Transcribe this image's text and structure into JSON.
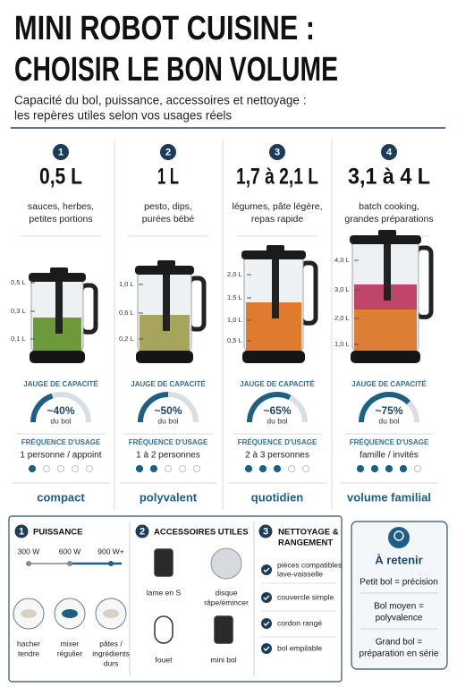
{
  "header": {
    "title_lines": [
      "MINI ROBOT CUISINE :",
      "CHOISIR LE BON VOLUME"
    ],
    "subtitle_lines": [
      "Capacité du bol, puissance, accessoires et nettoyage :",
      "les repères utiles selon vos usages réels"
    ]
  },
  "columns": [
    {
      "number": 1,
      "volume": "0,5 L",
      "description": [
        "sauces, herbes,",
        "petites portions"
      ],
      "scale": [
        "0,5 L",
        "0,3 L",
        "0,1 L"
      ],
      "gauge_title": "JAUGE DE CAPACITÉ",
      "gauge": {
        "value": 40,
        "label": "~40%"
      },
      "gauge_unit": "du bol",
      "usage_title": "FRÉQUENCE D'USAGE",
      "usage": "1 personne / appoint",
      "usage_level": 1,
      "usage_max": 5,
      "tag": "compact"
    },
    {
      "number": 2,
      "volume": "1 L",
      "description": [
        "pesto, dips,",
        "purées bébé"
      ],
      "scale": [
        "1,0 L",
        "0,6 L",
        "0,2 L"
      ],
      "gauge_title": "JAUGE DE CAPACITÉ",
      "gauge": {
        "value": 50,
        "label": "~50%"
      },
      "gauge_unit": "du bol",
      "usage_title": "FRÉQUENCE D'USAGE",
      "usage": "1 à 2 personnes",
      "usage_level": 2,
      "usage_max": 5,
      "tag": "polyvalent"
    },
    {
      "number": 3,
      "volume": "1,7 à 2,1 L",
      "description": [
        "légumes, pâte légère,",
        "repas rapide"
      ],
      "scale": [
        "2,0 L",
        "1,5 L",
        "1,0 L",
        "0,5 L"
      ],
      "gauge_title": "JAUGE DE CAPACITÉ",
      "gauge": {
        "value": 65,
        "label": "~65%"
      },
      "gauge_unit": "du bol",
      "usage_title": "FRÉQUENCE D'USAGE",
      "usage": "2 à 3 personnes",
      "usage_level": 3,
      "usage_max": 5,
      "tag": "quotidien"
    },
    {
      "number": 4,
      "volume": "3,1 à 4 L",
      "description": [
        "batch cooking,",
        "grandes préparations"
      ],
      "scale": [
        "4,0 L",
        "3,0 L",
        "2,0 L",
        "1,0 L"
      ],
      "gauge_title": "JAUGE DE CAPACITÉ",
      "gauge": {
        "value": 75,
        "label": "~75%"
      },
      "gauge_unit": "du bol",
      "usage_title": "FRÉQUENCE D'USAGE",
      "usage": "famille / invités",
      "usage_level": 4,
      "usage_max": 5,
      "tag": "volume familial"
    }
  ],
  "power": {
    "number": 1,
    "title": "PUISSANCE",
    "levels": [
      "300 W",
      "600 W",
      "900 W+"
    ],
    "modes": [
      [
        "hacher",
        "tendre"
      ],
      [
        "mixer",
        "régulier"
      ],
      [
        "pâtes /",
        "ingrédients",
        "durs"
      ]
    ]
  },
  "accessories": {
    "number": 2,
    "title": "ACCESSOIRES UTILES",
    "items": [
      [
        "lame en S"
      ],
      [
        "disque",
        "râpe/émincer"
      ],
      [
        "fouet"
      ],
      [
        "mini bol"
      ]
    ]
  },
  "cleaning": {
    "number": 3,
    "title_lines": [
      "NETTOYAGE &",
      "RANGEMENT"
    ],
    "items": [
      [
        "pièces compatibles",
        "lave-vaisselle"
      ],
      [
        "couvercle simple"
      ],
      [
        "cordon rangé"
      ],
      [
        "bol empilable"
      ]
    ]
  },
  "takeaway": {
    "title": "À retenir",
    "items": [
      [
        "Petit bol = précision"
      ],
      [
        "Bol moyen =",
        "polyvalence"
      ],
      [
        "Grand bol =",
        "préparation en série"
      ]
    ]
  }
}
